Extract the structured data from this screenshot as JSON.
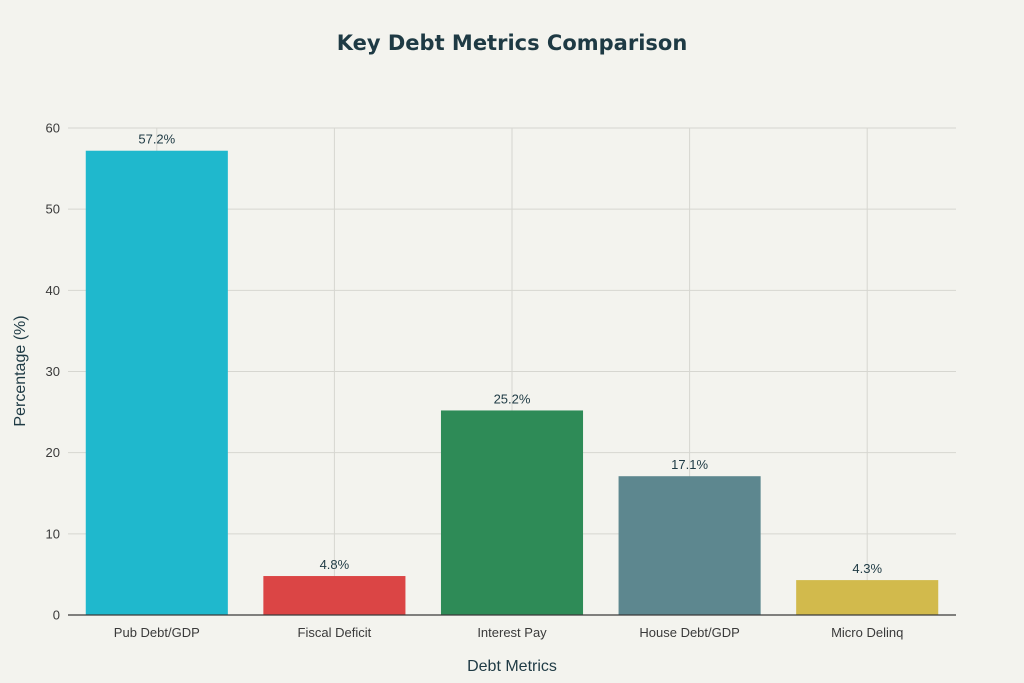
{
  "chart_data": {
    "type": "bar",
    "title": "Key Debt Metrics Comparison",
    "xlabel": "Debt Metrics",
    "ylabel": "Percentage (%)",
    "categories": [
      "Pub Debt/GDP",
      "Fiscal Deficit",
      "Interest Pay",
      "House Debt/GDP",
      "Micro Delinq"
    ],
    "values": [
      57.2,
      4.8,
      25.2,
      17.1,
      4.3
    ],
    "value_labels": [
      "57.2%",
      "4.8%",
      "25.2%",
      "17.1%",
      "4.3%"
    ],
    "colors": [
      "#1fb8cd",
      "#db4545",
      "#2e8b57",
      "#5d878f",
      "#d2ba4c"
    ],
    "ylim": [
      0,
      60
    ],
    "yticks": [
      0,
      10,
      20,
      30,
      40,
      50,
      60
    ],
    "grid": true,
    "legend": "none"
  }
}
